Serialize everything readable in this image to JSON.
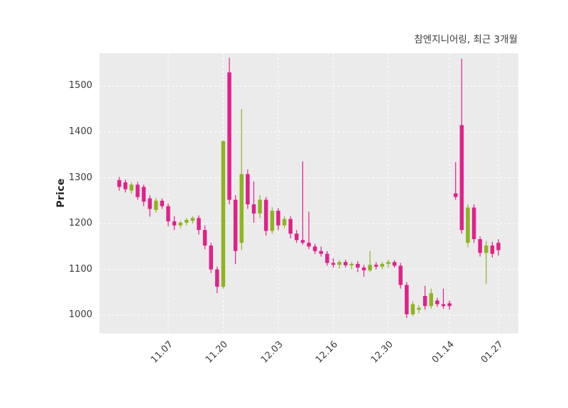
{
  "header": {
    "title": "참엔지니어링, 최근 3개월"
  },
  "chart_data": {
    "type": "candlestick",
    "title": "참엔지니어링, 최근 3개월",
    "xlabel": "",
    "ylabel": "Price",
    "ylim": [
      960,
      1572
    ],
    "y_ticks": [
      1000,
      1100,
      1200,
      1300,
      1400,
      1500
    ],
    "x_ticks": [
      "11.07",
      "11.20",
      "12.03",
      "12.16",
      "12.30",
      "01.14",
      "01.27"
    ],
    "grid": true,
    "legend": "none",
    "colors": {
      "up": "#8db521",
      "down": "#e0218a",
      "plot_bg": "#ebebeb",
      "grid": "#ffffff",
      "tick_text": "#3a3a3a",
      "title_text": "#3d3d3d"
    },
    "candle_format": [
      "date",
      "open",
      "high",
      "low",
      "close"
    ],
    "candles": [
      [
        "10.28",
        1295,
        1302,
        1272,
        1280
      ],
      [
        "10.29",
        1290,
        1296,
        1268,
        1275
      ],
      [
        "10.30",
        1272,
        1290,
        1265,
        1285
      ],
      [
        "10.31",
        1285,
        1291,
        1252,
        1258
      ],
      [
        "11.01",
        1280,
        1285,
        1238,
        1248
      ],
      [
        "11.04",
        1255,
        1262,
        1215,
        1232
      ],
      [
        "11.05",
        1230,
        1256,
        1224,
        1250
      ],
      [
        "11.06",
        1250,
        1255,
        1232,
        1238
      ],
      [
        "11.07",
        1238,
        1244,
        1194,
        1205
      ],
      [
        "11.08",
        1205,
        1216,
        1186,
        1196
      ],
      [
        "11.11",
        1196,
        1206,
        1190,
        1202
      ],
      [
        "11.12",
        1202,
        1212,
        1196,
        1208
      ],
      [
        "11.13",
        1206,
        1216,
        1200,
        1212
      ],
      [
        "11.14",
        1212,
        1218,
        1176,
        1186
      ],
      [
        "11.15",
        1186,
        1196,
        1144,
        1152
      ],
      [
        "11.18",
        1152,
        1158,
        1092,
        1100
      ],
      [
        "11.19",
        1100,
        1106,
        1048,
        1062
      ],
      [
        "11.20",
        1062,
        1382,
        1058,
        1380
      ],
      [
        "11.21",
        1530,
        1562,
        1242,
        1252
      ],
      [
        "11.22",
        1252,
        1262,
        1112,
        1140
      ],
      [
        "11.25",
        1158,
        1450,
        1142,
        1308
      ],
      [
        "11.26",
        1308,
        1318,
        1232,
        1242
      ],
      [
        "11.27",
        1242,
        1292,
        1202,
        1222
      ],
      [
        "11.28",
        1222,
        1262,
        1212,
        1252
      ],
      [
        "11.29",
        1252,
        1258,
        1174,
        1184
      ],
      [
        "12.02",
        1184,
        1236,
        1178,
        1228
      ],
      [
        "12.03",
        1228,
        1234,
        1186,
        1196
      ],
      [
        "12.04",
        1196,
        1216,
        1190,
        1210
      ],
      [
        "12.05",
        1210,
        1216,
        1168,
        1178
      ],
      [
        "12.06",
        1178,
        1186,
        1158,
        1164
      ],
      [
        "12.09",
        1164,
        1336,
        1154,
        1158
      ],
      [
        "12.10",
        1158,
        1226,
        1144,
        1150
      ],
      [
        "12.11",
        1150,
        1156,
        1134,
        1140
      ],
      [
        "12.12",
        1140,
        1150,
        1128,
        1134
      ],
      [
        "12.13",
        1134,
        1140,
        1108,
        1114
      ],
      [
        "12.16",
        1114,
        1124,
        1104,
        1110
      ],
      [
        "12.17",
        1110,
        1120,
        1102,
        1116
      ],
      [
        "12.18",
        1116,
        1121,
        1104,
        1109
      ],
      [
        "12.19",
        1109,
        1116,
        1100,
        1112
      ],
      [
        "12.20",
        1112,
        1118,
        1094,
        1104
      ],
      [
        "12.23",
        1104,
        1110,
        1084,
        1098
      ],
      [
        "12.24",
        1098,
        1140,
        1094,
        1110
      ],
      [
        "12.26",
        1110,
        1116,
        1100,
        1106
      ],
      [
        "12.27",
        1106,
        1116,
        1100,
        1112
      ],
      [
        "12.30",
        1112,
        1121,
        1104,
        1116
      ],
      [
        "12.31",
        1116,
        1120,
        1104,
        1108
      ],
      [
        "01.02",
        1108,
        1114,
        1058,
        1066
      ],
      [
        "01.03",
        1066,
        1072,
        994,
        1002
      ],
      [
        "01.06",
        1002,
        1030,
        998,
        1024
      ],
      [
        "01.07",
        1012,
        1022,
        1004,
        1016
      ],
      [
        "01.08",
        1042,
        1064,
        1012,
        1020
      ],
      [
        "01.09",
        1020,
        1058,
        1014,
        1048
      ],
      [
        "01.10",
        1032,
        1038,
        1018,
        1024
      ],
      [
        "01.13",
        1024,
        1058,
        1014,
        1020
      ],
      [
        "01.14",
        1026,
        1032,
        1012,
        1020
      ],
      [
        "01.15",
        1266,
        1334,
        1252,
        1258
      ],
      [
        "01.16",
        1415,
        1560,
        1178,
        1186
      ],
      [
        "01.17",
        1158,
        1242,
        1148,
        1235
      ],
      [
        "01.20",
        1235,
        1242,
        1158,
        1166
      ],
      [
        "01.21",
        1166,
        1172,
        1128,
        1136
      ],
      [
        "01.22",
        1136,
        1162,
        1068,
        1152
      ],
      [
        "01.23",
        1152,
        1160,
        1126,
        1134
      ],
      [
        "01.27",
        1158,
        1166,
        1130,
        1142
      ]
    ]
  }
}
